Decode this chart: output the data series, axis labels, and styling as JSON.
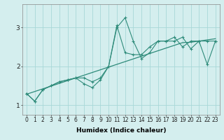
{
  "title": "",
  "xlabel": "Humidex (Indice chaleur)",
  "x_values": [
    0,
    1,
    2,
    3,
    4,
    5,
    6,
    7,
    8,
    9,
    10,
    11,
    12,
    13,
    14,
    15,
    16,
    17,
    18,
    19,
    20,
    21,
    22,
    23
  ],
  "line1_y": [
    1.3,
    1.1,
    1.4,
    1.5,
    1.6,
    1.65,
    1.7,
    1.55,
    1.45,
    1.65,
    2.0,
    3.0,
    3.25,
    2.65,
    2.2,
    2.35,
    2.65,
    2.65,
    2.65,
    2.75,
    2.45,
    2.65,
    2.65,
    2.65
  ],
  "line2_y": [
    1.3,
    1.1,
    1.4,
    1.5,
    1.6,
    1.65,
    1.7,
    1.7,
    1.6,
    1.7,
    2.0,
    3.05,
    2.35,
    2.3,
    2.3,
    2.5,
    2.65,
    2.65,
    2.75,
    2.5,
    2.65,
    2.65,
    2.05,
    2.65
  ],
  "regression_y": [
    1.28,
    1.35,
    1.42,
    1.49,
    1.56,
    1.63,
    1.7,
    1.77,
    1.84,
    1.91,
    1.98,
    2.05,
    2.12,
    2.19,
    2.26,
    2.33,
    2.4,
    2.47,
    2.54,
    2.61,
    2.62,
    2.65,
    2.68,
    2.71
  ],
  "line_color": "#2E8B7A",
  "bg_color": "#D4EEEE",
  "grid_color": "#A8D8D8",
  "ylim": [
    0.75,
    3.6
  ],
  "yticks": [
    1,
    2,
    3
  ],
  "xlim": [
    -0.5,
    23.5
  ],
  "figsize": [
    3.2,
    2.0
  ],
  "dpi": 100,
  "xlabel_fontsize": 6.5,
  "tick_fontsize": 5.5,
  "ytick_fontsize": 6.5
}
